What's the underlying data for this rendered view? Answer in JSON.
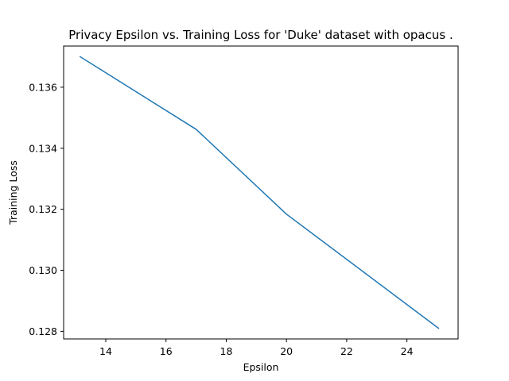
{
  "chart_data": {
    "type": "line",
    "title": "Privacy Epsilon vs. Training Loss for 'Duke' dataset with opacus .",
    "xlabel": "Epsilon",
    "ylabel": "Training Loss",
    "xlim": [
      12.6,
      25.7
    ],
    "ylim": [
      0.12775,
      0.13735
    ],
    "xticks": [
      14,
      16,
      18,
      20,
      22,
      24
    ],
    "yticks": [
      0.128,
      0.13,
      0.132,
      0.134,
      0.136
    ],
    "xtick_labels": [
      "14",
      "16",
      "18",
      "20",
      "22",
      "24"
    ],
    "ytick_labels": [
      "0.128",
      "0.130",
      "0.132",
      "0.134",
      "0.136"
    ],
    "grid": false,
    "series": [
      {
        "color": "#1f77b4",
        "x": [
          13.15,
          17.0,
          20.0,
          25.05
        ],
        "y": [
          0.137,
          0.13462,
          0.13184,
          0.1281
        ]
      }
    ]
  }
}
